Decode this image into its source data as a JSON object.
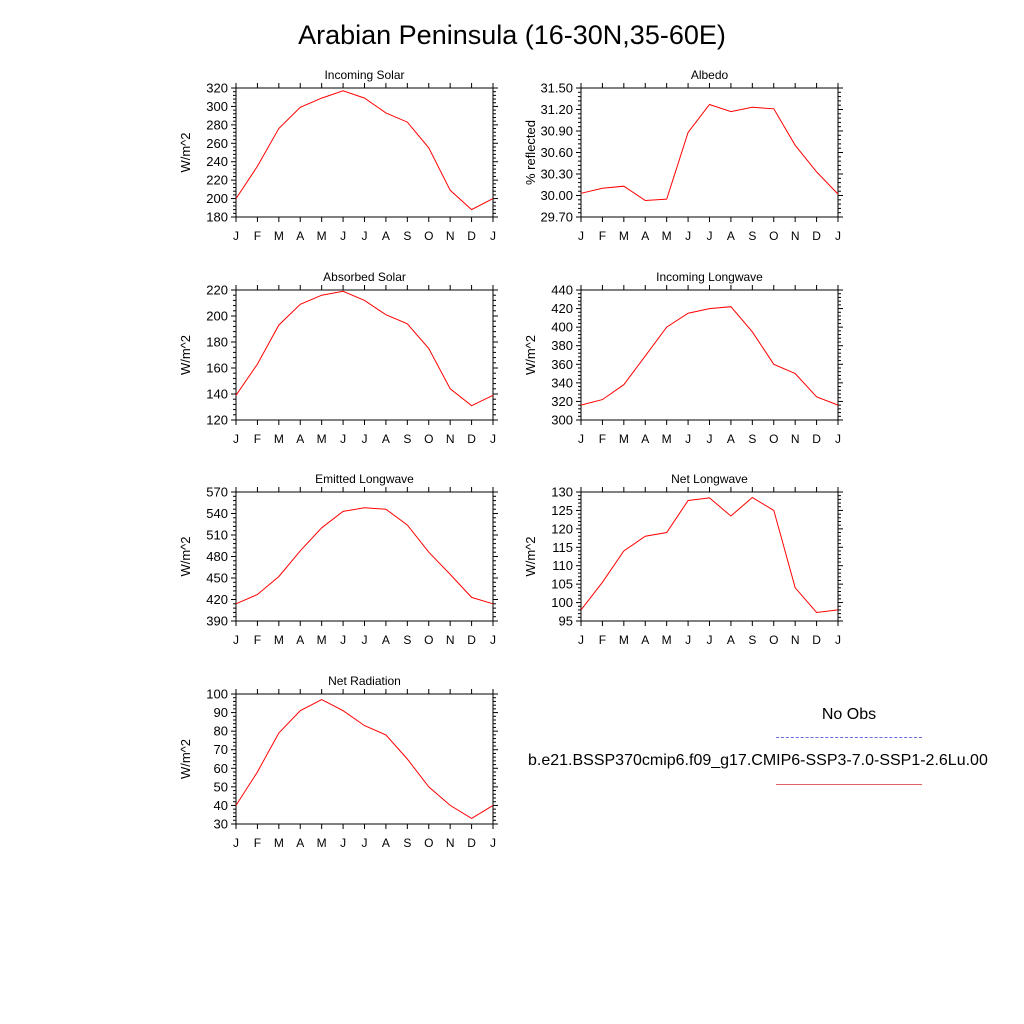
{
  "title": "Arabian Peninsula (16-30N,35-60E)",
  "legend": {
    "obs_label": "No Obs",
    "case_label": "b.e21.BSSP370cmip6.f09_g17.CMIP6-SSP3-7.0-SSP1-2.6Lu.00",
    "obs_color": "#6b6bdf",
    "case_color": "#ff0000"
  },
  "chart_data": [
    {
      "type": "line",
      "title": "Incoming Solar",
      "ylabel": "W/m^2",
      "categories": [
        "J",
        "F",
        "M",
        "A",
        "M",
        "J",
        "J",
        "A",
        "S",
        "O",
        "N",
        "D",
        "J"
      ],
      "values": [
        200,
        235,
        276,
        299,
        309,
        317,
        309,
        293,
        283,
        255,
        209,
        188,
        200
      ],
      "ylim": [
        180,
        320
      ],
      "yticks": [
        "180",
        "200",
        "220",
        "240",
        "260",
        "280",
        "300",
        "320"
      ],
      "color": "#ff0000"
    },
    {
      "type": "line",
      "title": "Albedo",
      "ylabel": "% reflected",
      "categories": [
        "J",
        "F",
        "M",
        "A",
        "M",
        "J",
        "J",
        "A",
        "S",
        "O",
        "N",
        "D",
        "J"
      ],
      "values": [
        30.03,
        30.1,
        30.13,
        29.93,
        29.95,
        30.88,
        31.27,
        31.17,
        31.23,
        31.21,
        30.7,
        30.33,
        30.02
      ],
      "ylim": [
        29.7,
        31.5
      ],
      "yticks": [
        "29.70",
        "30.00",
        "30.30",
        "30.60",
        "30.90",
        "31.20",
        "31.50"
      ],
      "color": "#ff0000"
    },
    {
      "type": "line",
      "title": "Absorbed Solar",
      "ylabel": "W/m^2",
      "categories": [
        "J",
        "F",
        "M",
        "A",
        "M",
        "J",
        "J",
        "A",
        "S",
        "O",
        "N",
        "D",
        "J"
      ],
      "values": [
        139,
        163,
        193,
        209,
        216,
        219,
        212,
        201,
        194,
        175,
        144,
        131,
        139
      ],
      "ylim": [
        120,
        220
      ],
      "yticks": [
        "120",
        "140",
        "160",
        "180",
        "200",
        "220"
      ],
      "color": "#ff0000"
    },
    {
      "type": "line",
      "title": "Incoming Longwave",
      "ylabel": "W/m^2",
      "categories": [
        "J",
        "F",
        "M",
        "A",
        "M",
        "J",
        "J",
        "A",
        "S",
        "O",
        "N",
        "D",
        "J"
      ],
      "values": [
        316,
        322,
        338,
        369,
        400,
        415,
        420,
        422,
        395,
        360,
        350,
        325,
        316
      ],
      "ylim": [
        300,
        440
      ],
      "yticks": [
        "300",
        "320",
        "340",
        "360",
        "380",
        "400",
        "420",
        "440"
      ],
      "color": "#ff0000"
    },
    {
      "type": "line",
      "title": "Emitted Longwave",
      "ylabel": "W/m^2",
      "categories": [
        "J",
        "F",
        "M",
        "A",
        "M",
        "J",
        "J",
        "A",
        "S",
        "O",
        "N",
        "D",
        "J"
      ],
      "values": [
        414,
        427,
        452,
        488,
        520,
        543,
        548,
        546,
        524,
        486,
        455,
        423,
        414
      ],
      "ylim": [
        390,
        570
      ],
      "yticks": [
        "390",
        "420",
        "450",
        "480",
        "510",
        "540",
        "570"
      ],
      "color": "#ff0000"
    },
    {
      "type": "line",
      "title": "Net Longwave",
      "ylabel": "W/m^2",
      "categories": [
        "J",
        "F",
        "M",
        "A",
        "M",
        "J",
        "J",
        "A",
        "S",
        "O",
        "N",
        "D",
        "J"
      ],
      "values": [
        98,
        105.5,
        114,
        118,
        119,
        127.7,
        128.4,
        123.5,
        128.5,
        125,
        104,
        97.3,
        98
      ],
      "ylim": [
        95,
        130
      ],
      "yticks": [
        "95",
        "100",
        "105",
        "110",
        "115",
        "120",
        "125",
        "130"
      ],
      "color": "#ff0000"
    },
    {
      "type": "line",
      "title": "Net Radiation",
      "ylabel": "W/m^2",
      "categories": [
        "J",
        "F",
        "M",
        "A",
        "M",
        "J",
        "J",
        "A",
        "S",
        "O",
        "N",
        "D",
        "J"
      ],
      "values": [
        40,
        58,
        79,
        91,
        97,
        91,
        83,
        78,
        65,
        50,
        40,
        33,
        40
      ],
      "ylim": [
        30,
        100
      ],
      "yticks": [
        "30",
        "40",
        "50",
        "60",
        "70",
        "80",
        "90",
        "100"
      ],
      "color": "#ff0000"
    }
  ]
}
